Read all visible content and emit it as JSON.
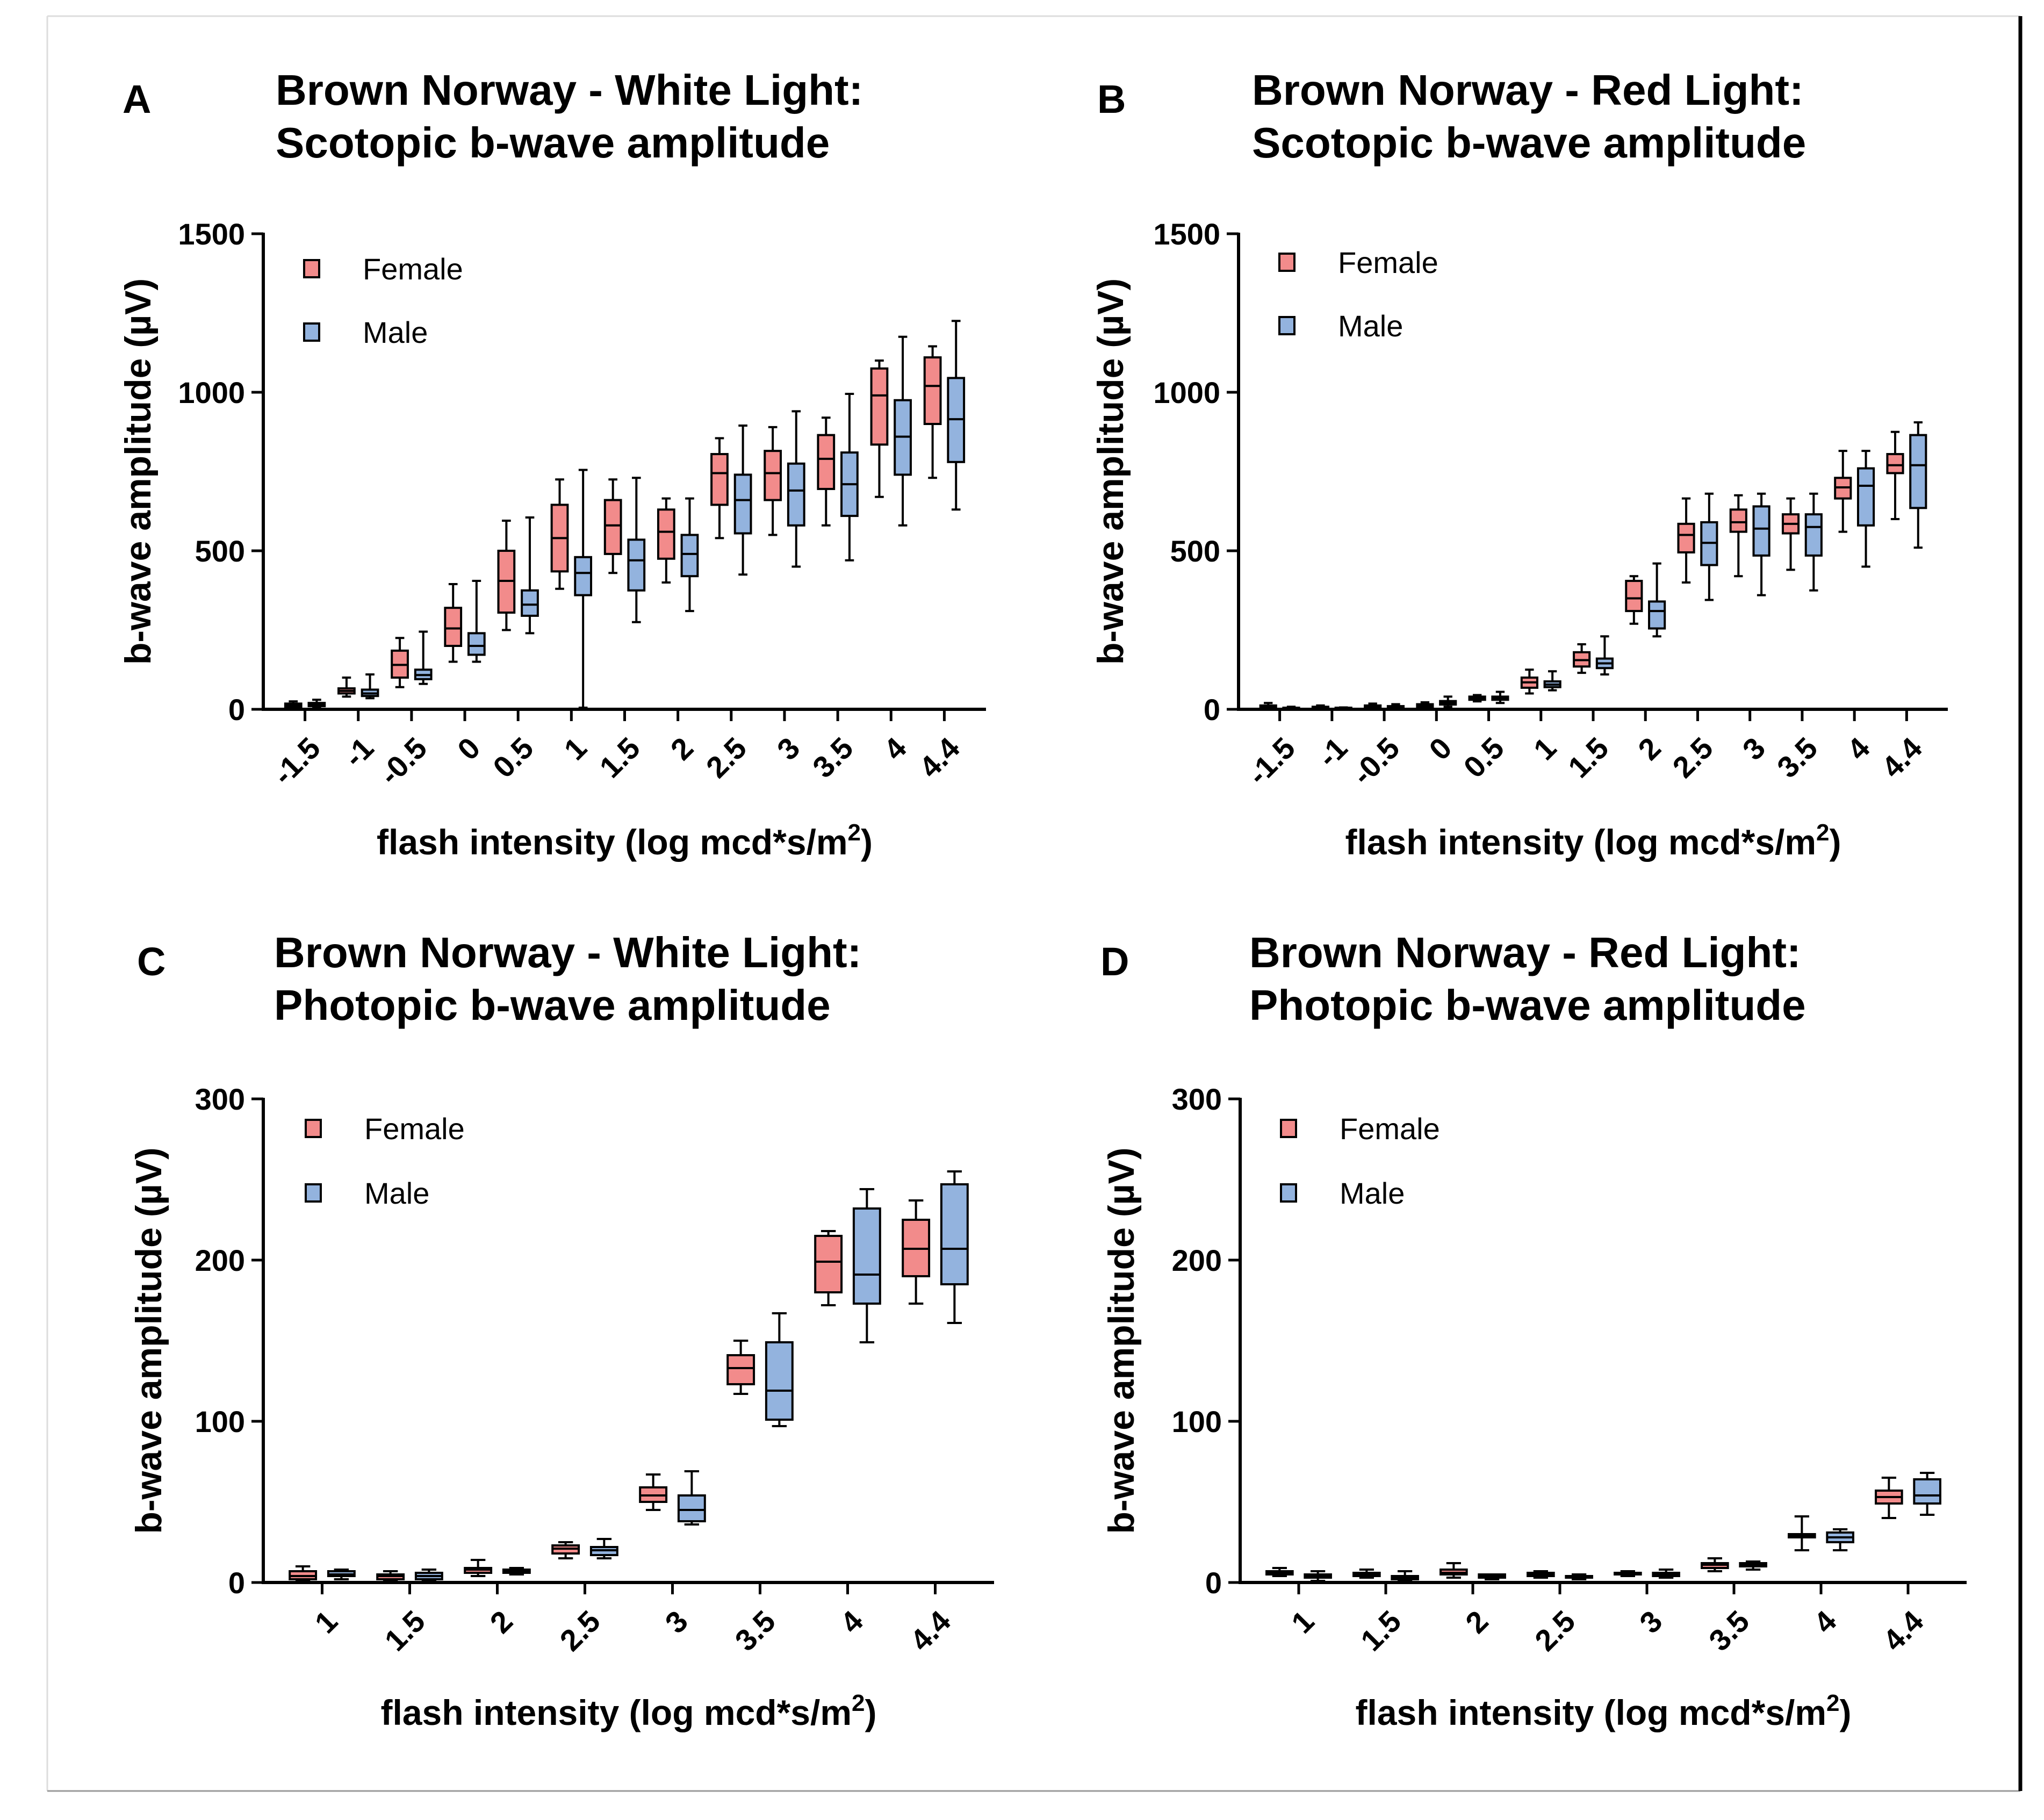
{
  "figure": {
    "colors": {
      "female": "#f28b8b",
      "male": "#93b3de"
    }
  },
  "chart_data": [
    {
      "type": "box",
      "panel": "A",
      "title_line1": "Brown Norway - White Light:",
      "title_line2": "Scotopic b-wave amplitude",
      "ylabel": "b-wave amplitude (µV)",
      "xlabel_main": "flash intensity (log mcd*s/m",
      "xlabel_sup": "2",
      "xlabel_end": ")",
      "ylim": [
        0,
        1500
      ],
      "yticks": [
        "0",
        "500",
        "1000",
        "1500"
      ],
      "yticks_values": [
        0,
        500,
        1000,
        1500
      ],
      "categories": [
        "-1.5",
        "-1",
        "-0.5",
        "0",
        "0.5",
        "1",
        "1.5",
        "2",
        "2.5",
        "3",
        "3.5",
        "4",
        "4.4"
      ],
      "legend": [
        "Female",
        "Male"
      ],
      "series": [
        {
          "name": "Female",
          "boxes": [
            [
              5,
              8,
              12,
              18,
              25
            ],
            [
              40,
              50,
              58,
              66,
              100
            ],
            [
              70,
              100,
              140,
              185,
              225
            ],
            [
              150,
              200,
              255,
              320,
              395
            ],
            [
              250,
              305,
              405,
              500,
              595
            ],
            [
              380,
              435,
              540,
              645,
              725
            ],
            [
              430,
              490,
              580,
              660,
              725
            ],
            [
              400,
              475,
              560,
              630,
              665
            ],
            [
              540,
              645,
              745,
              805,
              855
            ],
            [
              550,
              660,
              745,
              815,
              890
            ],
            [
              580,
              695,
              790,
              865,
              920
            ],
            [
              670,
              835,
              990,
              1075,
              1100
            ],
            [
              730,
              900,
              1020,
              1110,
              1145
            ]
          ]
        },
        {
          "name": "Male",
          "boxes": [
            [
              5,
              10,
              15,
              20,
              30
            ],
            [
              35,
              42,
              50,
              62,
              110
            ],
            [
              80,
              95,
              108,
              125,
              245
            ],
            [
              150,
              172,
              200,
              240,
              405
            ],
            [
              240,
              295,
              330,
              375,
              605
            ],
            [
              5,
              360,
              430,
              480,
              755
            ],
            [
              275,
              375,
              470,
              535,
              730
            ],
            [
              310,
              420,
              490,
              550,
              665
            ],
            [
              425,
              555,
              660,
              740,
              895
            ],
            [
              450,
              580,
              690,
              775,
              940
            ],
            [
              470,
              610,
              710,
              810,
              995
            ],
            [
              580,
              740,
              860,
              975,
              1175
            ],
            [
              630,
              780,
              915,
              1045,
              1225
            ]
          ]
        }
      ]
    },
    {
      "type": "box",
      "panel": "B",
      "title_line1": "Brown Norway - Red Light:",
      "title_line2": "Scotopic b-wave amplitude",
      "ylabel": "b-wave amplitude (µV)",
      "xlabel_main": "flash intensity (log mcd*s/m",
      "xlabel_sup": "2",
      "xlabel_end": ")",
      "ylim": [
        0,
        1500
      ],
      "yticks": [
        "0",
        "500",
        "1000",
        "1500"
      ],
      "yticks_values": [
        0,
        500,
        1000,
        1500
      ],
      "categories": [
        "-1.5",
        "-1",
        "-0.5",
        "0",
        "0.5",
        "1",
        "1.5",
        "2",
        "2.5",
        "3",
        "3.5",
        "4",
        "4.4"
      ],
      "legend": [
        "Female",
        "Male"
      ],
      "series": [
        {
          "name": "Female",
          "boxes": [
            [
              2,
              5,
              8,
              12,
              20
            ],
            [
              2,
              4,
              6,
              8,
              12
            ],
            [
              2,
              5,
              8,
              12,
              18
            ],
            [
              5,
              8,
              12,
              16,
              22
            ],
            [
              25,
              30,
              35,
              40,
              45
            ],
            [
              50,
              68,
              85,
              100,
              125
            ],
            [
              115,
              135,
              155,
              180,
              205
            ],
            [
              270,
              310,
              350,
              405,
              420
            ],
            [
              400,
              495,
              550,
              585,
              665
            ],
            [
              420,
              560,
              590,
              630,
              675
            ],
            [
              440,
              555,
              585,
              615,
              665
            ],
            [
              560,
              665,
              700,
              730,
              815
            ],
            [
              600,
              745,
              770,
              805,
              875
            ]
          ]
        },
        {
          "name": "Male",
          "boxes": [
            [
              2,
              3,
              4,
              5,
              8
            ],
            [
              2,
              3,
              4,
              5,
              6
            ],
            [
              2,
              4,
              6,
              10,
              16
            ],
            [
              8,
              15,
              20,
              26,
              40
            ],
            [
              20,
              30,
              35,
              40,
              55
            ],
            [
              60,
              70,
              78,
              88,
              120
            ],
            [
              110,
              130,
              145,
              160,
              230
            ],
            [
              230,
              255,
              310,
              340,
              460
            ],
            [
              345,
              455,
              525,
              590,
              680
            ],
            [
              360,
              485,
              570,
              640,
              680
            ],
            [
              375,
              485,
              575,
              615,
              680
            ],
            [
              450,
              580,
              705,
              760,
              815
            ],
            [
              510,
              635,
              770,
              865,
              905
            ]
          ]
        }
      ]
    },
    {
      "type": "box",
      "panel": "C",
      "title_line1": "Brown Norway - White Light:",
      "title_line2": "Photopic b-wave amplitude",
      "ylabel": "b-wave amplitude (µV)",
      "xlabel_main": "flash intensity (log mcd*s/m",
      "xlabel_sup": "2",
      "xlabel_end": ")",
      "ylim": [
        0,
        300
      ],
      "yticks": [
        "0",
        "100",
        "200",
        "300"
      ],
      "yticks_values": [
        0,
        100,
        200,
        300
      ],
      "categories": [
        "1",
        "1.5",
        "2",
        "2.5",
        "3",
        "3.5",
        "4",
        "4.4"
      ],
      "legend": [
        "Female",
        "Male"
      ],
      "series": [
        {
          "name": "Female",
          "boxes": [
            [
              1,
              2,
              4,
              7,
              10
            ],
            [
              1,
              2,
              4,
              5,
              7
            ],
            [
              4,
              6,
              8,
              9,
              14
            ],
            [
              15,
              18,
              21,
              23,
              25
            ],
            [
              45,
              50,
              54,
              59,
              67
            ],
            [
              117,
              123,
              133,
              141,
              150
            ],
            [
              172,
              180,
              199,
              215,
              218
            ],
            [
              173,
              190,
              207,
              225,
              237
            ]
          ]
        },
        {
          "name": "Male",
          "boxes": [
            [
              2,
              4,
              5,
              7,
              8
            ],
            [
              1,
              2,
              4,
              6,
              8
            ],
            [
              5,
              6,
              7,
              8,
              9
            ],
            [
              15,
              17,
              20,
              22,
              27
            ],
            [
              36,
              38,
              45,
              54,
              69
            ],
            [
              97,
              101,
              119,
              149,
              167
            ],
            [
              149,
              173,
              191,
              232,
              244
            ],
            [
              161,
              185,
              207,
              247,
              255
            ]
          ]
        }
      ]
    },
    {
      "type": "box",
      "panel": "D",
      "title_line1": "Brown Norway - Red Light:",
      "title_line2": "Photopic b-wave amplitude",
      "ylabel": "b-wave amplitude (µV)",
      "xlabel_main": "flash intensity (log mcd*s/m",
      "xlabel_sup": "2",
      "xlabel_end": ")",
      "ylim": [
        0,
        300
      ],
      "yticks": [
        "0",
        "100",
        "200",
        "300"
      ],
      "yticks_values": [
        0,
        100,
        200,
        300
      ],
      "categories": [
        "1",
        "1.5",
        "2",
        "2.5",
        "3",
        "3.5",
        "4",
        "4.4"
      ],
      "legend": [
        "Female",
        "Male"
      ],
      "series": [
        {
          "name": "Female",
          "boxes": [
            [
              4,
              5,
              6,
              7,
              9
            ],
            [
              3,
              4,
              5,
              6,
              8
            ],
            [
              3,
              5,
              6,
              8,
              12
            ],
            [
              3,
              4,
              5,
              6,
              7
            ],
            [
              4,
              5,
              5,
              6,
              7
            ],
            [
              7,
              9,
              11,
              12,
              15
            ],
            [
              20,
              28,
              29,
              30,
              41
            ],
            [
              40,
              49,
              53,
              57,
              65
            ]
          ]
        },
        {
          "name": "Male",
          "boxes": [
            [
              1,
              3,
              4,
              5,
              7
            ],
            [
              1,
              2,
              3,
              4,
              7
            ],
            [
              2,
              3,
              4,
              5,
              5
            ],
            [
              2,
              3,
              4,
              4,
              5
            ],
            [
              3,
              4,
              5,
              6,
              8
            ],
            [
              8,
              10,
              11,
              12,
              13
            ],
            [
              20,
              25,
              28,
              31,
              33
            ],
            [
              42,
              49,
              54,
              64,
              68
            ]
          ]
        }
      ]
    }
  ]
}
